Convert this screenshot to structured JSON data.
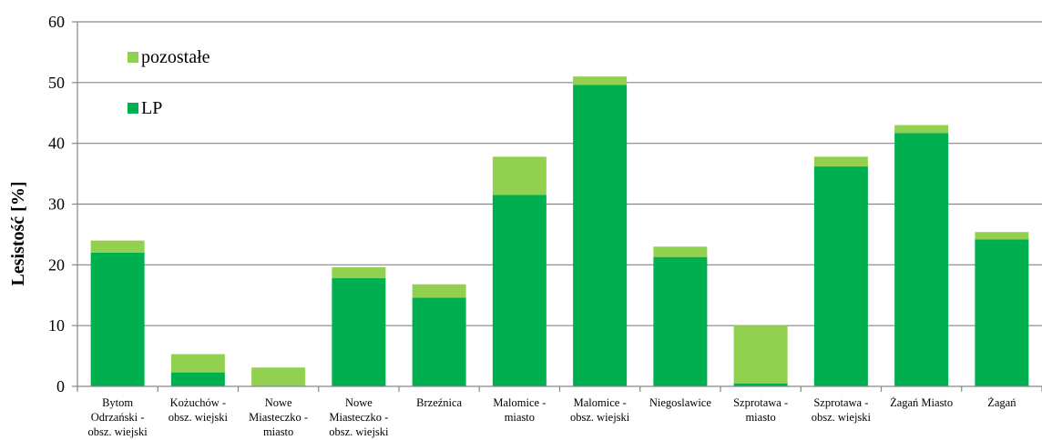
{
  "chart_data": {
    "type": "bar",
    "stacked": true,
    "ylabel": "Lesistość [%]",
    "xlabel": "",
    "ylim": [
      0,
      60
    ],
    "yticks": [
      0,
      10,
      20,
      30,
      40,
      50,
      60
    ],
    "grid": true,
    "legend_position": "top-left",
    "categories": [
      "Bytom Odrzański - obsz. wiejski",
      "Kożuchów - obsz. wiejski",
      "Nowe Miasteczko - miasto",
      "Nowe Miasteczko - obsz. wiejski",
      "Brzeźnica",
      "Malomice - miasto",
      "Malomice - obsz. wiejski",
      "Niegoslawice",
      "Szprotawa - miasto",
      "Szprotawa - obsz. wiejski",
      "Żagań Miasto",
      "Żagań"
    ],
    "category_lines": [
      [
        "Bytom",
        "Odrzański -",
        "obsz. wiejski"
      ],
      [
        "Kożuchów -",
        "obsz. wiejski"
      ],
      [
        "Nowe",
        "Miasteczko -",
        "miasto"
      ],
      [
        "Nowe",
        "Miasteczko -",
        "obsz. wiejski"
      ],
      [
        "Brzeźnica"
      ],
      [
        "Malomice -",
        "miasto"
      ],
      [
        "Malomice -",
        "obsz. wiejski"
      ],
      [
        "Niegoslawice"
      ],
      [
        "Szprotawa -",
        "miasto"
      ],
      [
        "Szprotawa -",
        "obsz. wiejski"
      ],
      [
        "Żagań Miasto"
      ],
      [
        "Żagań"
      ]
    ],
    "series": [
      {
        "name": "LP",
        "color": "#00B050",
        "values": [
          22.0,
          2.3,
          0.1,
          17.8,
          14.6,
          31.5,
          49.6,
          21.3,
          0.5,
          36.2,
          41.7,
          24.2
        ]
      },
      {
        "name": "pozostałe",
        "color": "#92D050",
        "values": [
          2.0,
          3.0,
          3.0,
          1.8,
          2.2,
          6.3,
          1.4,
          1.7,
          9.5,
          1.6,
          1.3,
          1.2
        ]
      }
    ]
  }
}
